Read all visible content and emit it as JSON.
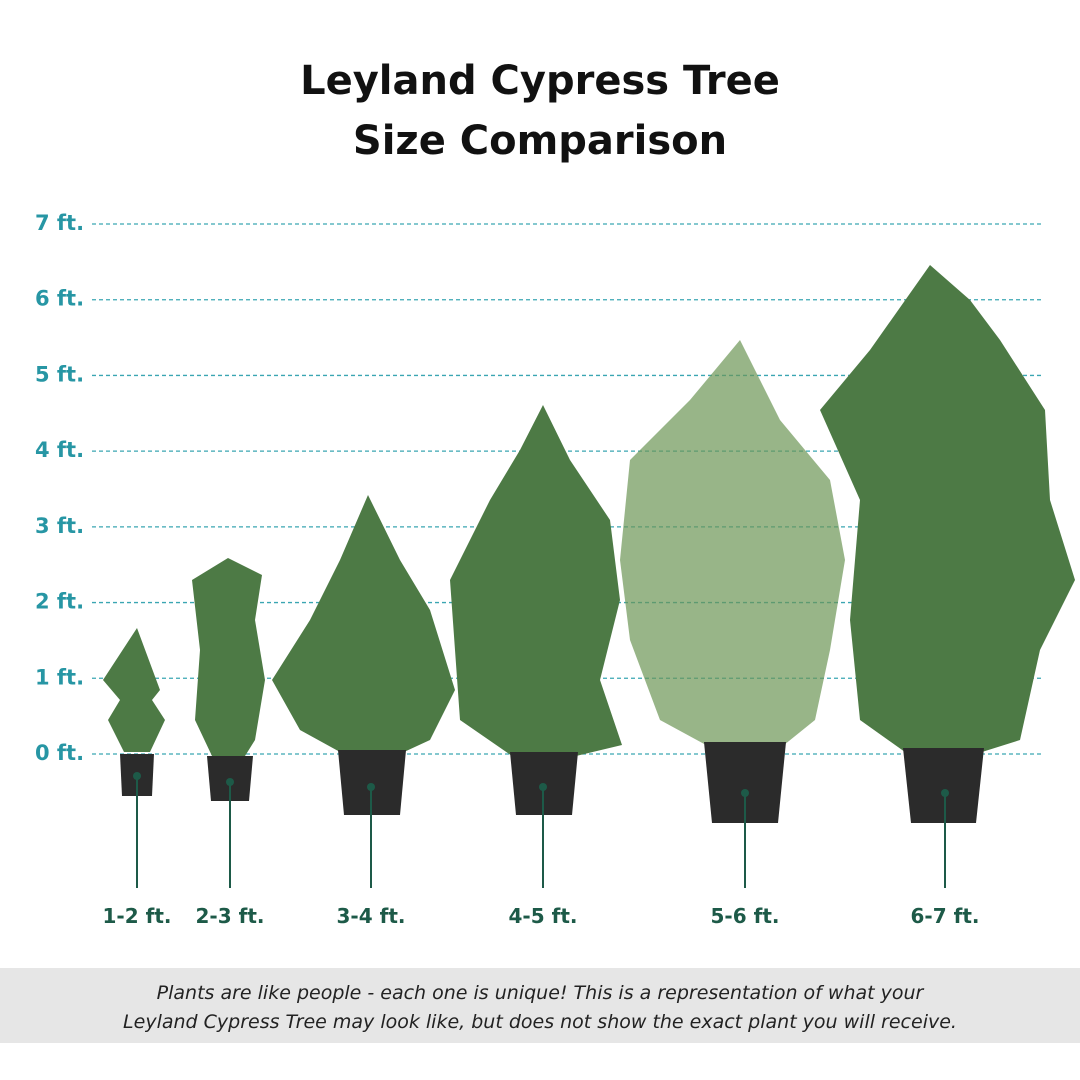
{
  "title": [
    "Leyland Cypress Tree",
    "Size Comparison"
  ],
  "scale": [
    "7 ft.",
    "6 ft.",
    "5 ft.",
    "4 ft.",
    "3 ft.",
    "2 ft.",
    "1 ft.",
    "0 ft."
  ],
  "plants": [
    {
      "label": "1-2 ft."
    },
    {
      "label": "2-3 ft."
    },
    {
      "label": "3-4 ft."
    },
    {
      "label": "4-5 ft."
    },
    {
      "label": "5-6 ft."
    },
    {
      "label": "6-7 ft."
    }
  ],
  "disclaimer": [
    "Plants are like people - each one is unique! This is a representation of what your",
    "Leyland Cypress Tree may look like, but does not show the exact plant you will receive."
  ]
}
